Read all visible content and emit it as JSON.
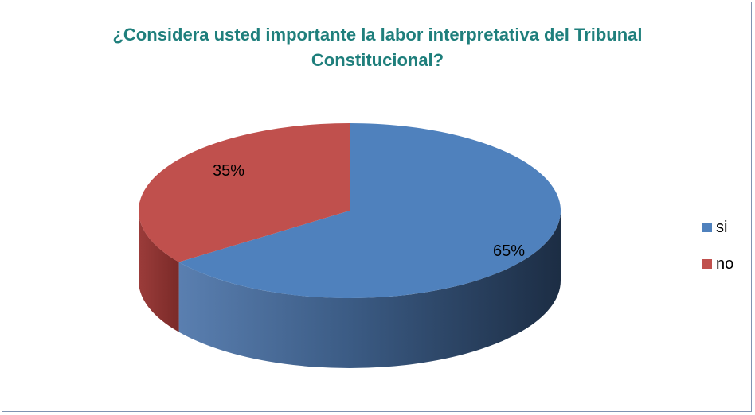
{
  "chart_data": {
    "type": "pie",
    "title_lines": [
      "¿Considera usted importante la labor interpretativa del Tribunal",
      "Constitucional?"
    ],
    "categories": [
      "si",
      "no"
    ],
    "values": [
      65,
      35
    ],
    "data_labels": [
      "65%",
      "35%"
    ],
    "colors": [
      "#4f81bd",
      "#c0504d"
    ],
    "style": "3d",
    "legend_position": "right"
  }
}
